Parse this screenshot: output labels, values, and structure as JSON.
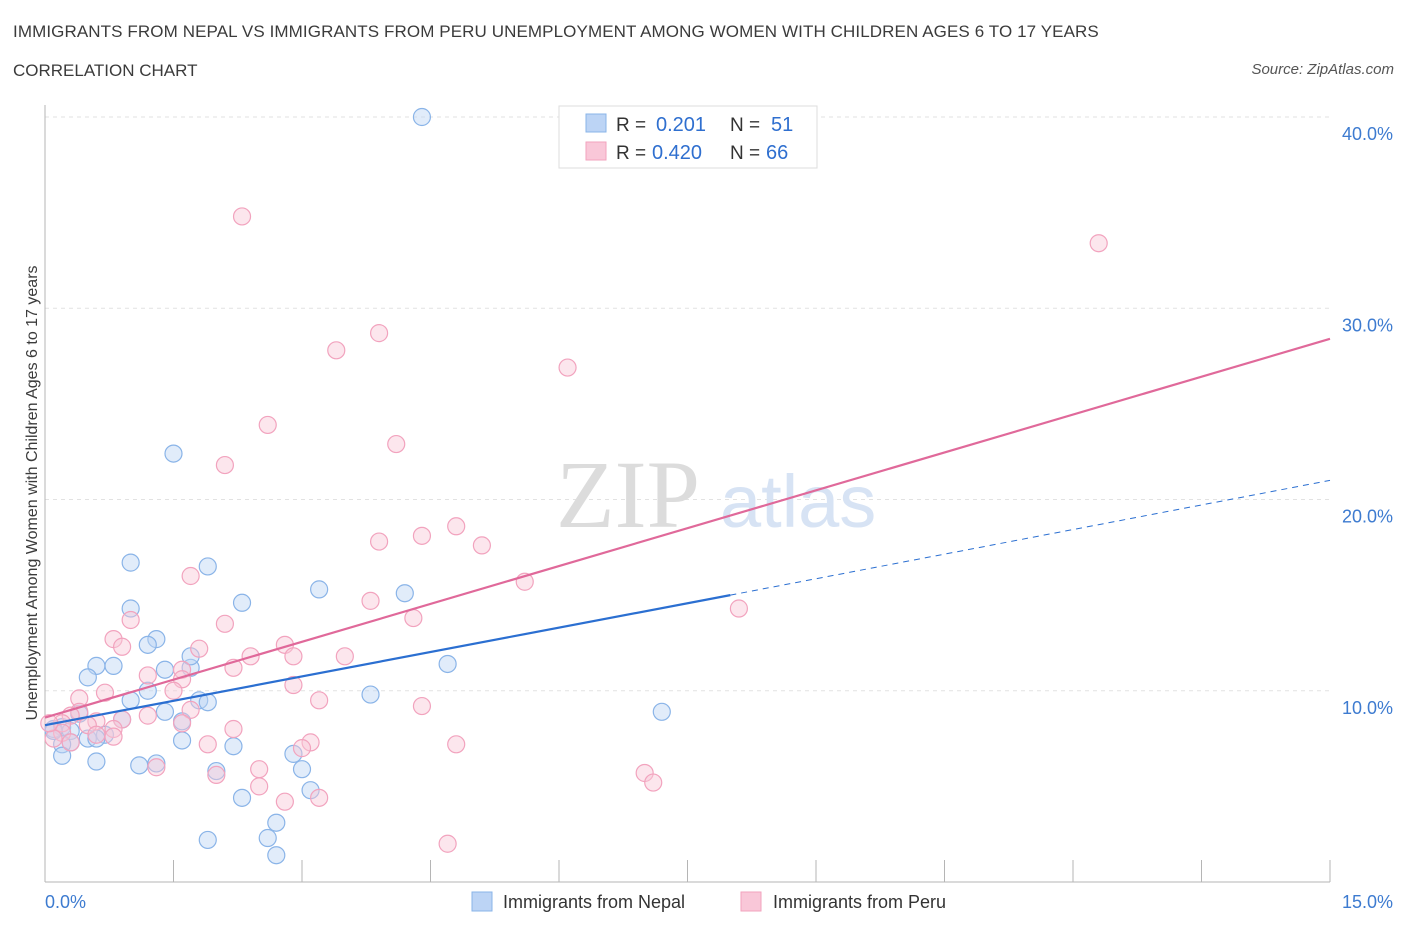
{
  "title": "IMMIGRANTS FROM NEPAL VS IMMIGRANTS FROM PERU UNEMPLOYMENT AMONG WOMEN WITH CHILDREN AGES 6 TO 17 YEARS",
  "subtitle": "CORRELATION CHART",
  "source": "Source: ZipAtlas.com",
  "watermark": {
    "zip": "ZIP",
    "atlas": "atlas"
  },
  "chart_data": {
    "type": "scatter",
    "xlabel": "",
    "ylabel": "Unemployment Among Women with Children Ages 6 to 17 years",
    "xlim": [
      0,
      15
    ],
    "ylim": [
      0,
      40
    ],
    "x_tick_labels": [
      "0.0%",
      "15.0%"
    ],
    "y_ticks": [
      10,
      20,
      30,
      40
    ],
    "y_tick_labels": [
      "10.0%",
      "20.0%",
      "30.0%",
      "40.0%"
    ],
    "grid": true,
    "legend_position": "bottom",
    "stats": [
      {
        "r_label": "R =",
        "r_value": "0.201",
        "n_label": "N =",
        "n_value": "51"
      },
      {
        "r_label": "R =",
        "r_value": "0.420",
        "n_label": "N =",
        "n_value": "66"
      }
    ],
    "series": [
      {
        "name": "Immigrants from Nepal",
        "color": "#8ab4e8",
        "line_color": "#2b6fd1",
        "trend": {
          "x0": 0.0,
          "y0": 8.2,
          "x1": 8.0,
          "y1": 15.0,
          "x_dash_end": 15.0,
          "y_dash_end": 21.0
        },
        "points": [
          [
            4.4,
            40.0
          ],
          [
            1.5,
            22.4
          ],
          [
            1.0,
            16.7
          ],
          [
            1.9,
            16.5
          ],
          [
            3.2,
            15.3
          ],
          [
            4.2,
            15.1
          ],
          [
            2.3,
            14.6
          ],
          [
            1.0,
            14.3
          ],
          [
            1.3,
            12.7
          ],
          [
            1.2,
            12.4
          ],
          [
            4.7,
            11.4
          ],
          [
            0.8,
            11.3
          ],
          [
            0.6,
            11.3
          ],
          [
            1.4,
            11.1
          ],
          [
            1.7,
            11.2
          ],
          [
            1.7,
            11.8
          ],
          [
            0.5,
            10.7
          ],
          [
            1.2,
            10.0
          ],
          [
            3.8,
            9.8
          ],
          [
            1.0,
            9.5
          ],
          [
            1.8,
            9.5
          ],
          [
            1.9,
            9.4
          ],
          [
            7.2,
            8.9
          ],
          [
            1.4,
            8.9
          ],
          [
            0.4,
            8.8
          ],
          [
            0.9,
            8.5
          ],
          [
            1.6,
            8.4
          ],
          [
            0.2,
            8.1
          ],
          [
            0.1,
            8.0
          ],
          [
            0.3,
            7.9
          ],
          [
            0.7,
            7.7
          ],
          [
            0.5,
            7.5
          ],
          [
            0.6,
            7.5
          ],
          [
            1.6,
            7.4
          ],
          [
            0.3,
            7.3
          ],
          [
            0.2,
            7.2
          ],
          [
            2.2,
            7.1
          ],
          [
            2.9,
            6.7
          ],
          [
            0.2,
            6.6
          ],
          [
            0.6,
            6.3
          ],
          [
            1.3,
            6.2
          ],
          [
            1.1,
            6.1
          ],
          [
            3.0,
            5.9
          ],
          [
            2.0,
            5.8
          ],
          [
            3.1,
            4.8
          ],
          [
            2.3,
            4.4
          ],
          [
            2.7,
            3.1
          ],
          [
            2.6,
            2.3
          ],
          [
            1.9,
            2.2
          ],
          [
            2.7,
            1.4
          ],
          [
            0.1,
            7.9
          ]
        ]
      },
      {
        "name": "Immigrants from Peru",
        "color": "#f2a3be",
        "line_color": "#e0699a",
        "trend": {
          "x0": 0.0,
          "y0": 8.6,
          "x1": 15.0,
          "y1": 28.4
        },
        "points": [
          [
            2.3,
            34.8
          ],
          [
            12.3,
            33.4
          ],
          [
            3.9,
            28.7
          ],
          [
            3.4,
            27.8
          ],
          [
            6.1,
            26.9
          ],
          [
            2.6,
            23.9
          ],
          [
            4.1,
            22.9
          ],
          [
            2.1,
            21.8
          ],
          [
            4.8,
            18.6
          ],
          [
            4.4,
            18.1
          ],
          [
            3.9,
            17.8
          ],
          [
            5.1,
            17.6
          ],
          [
            1.7,
            16.0
          ],
          [
            5.6,
            15.7
          ],
          [
            3.8,
            14.7
          ],
          [
            8.1,
            14.3
          ],
          [
            4.3,
            13.8
          ],
          [
            1.0,
            13.7
          ],
          [
            2.1,
            13.5
          ],
          [
            0.8,
            12.7
          ],
          [
            2.8,
            12.4
          ],
          [
            1.8,
            12.2
          ],
          [
            0.9,
            12.3
          ],
          [
            3.5,
            11.8
          ],
          [
            2.4,
            11.8
          ],
          [
            2.9,
            11.8
          ],
          [
            2.2,
            11.2
          ],
          [
            1.6,
            11.1
          ],
          [
            1.2,
            10.8
          ],
          [
            1.6,
            10.6
          ],
          [
            2.9,
            10.3
          ],
          [
            1.5,
            10.0
          ],
          [
            0.7,
            9.9
          ],
          [
            0.4,
            9.6
          ],
          [
            3.2,
            9.5
          ],
          [
            4.4,
            9.2
          ],
          [
            1.7,
            9.0
          ],
          [
            0.4,
            8.9
          ],
          [
            0.3,
            8.7
          ],
          [
            1.2,
            8.7
          ],
          [
            0.9,
            8.5
          ],
          [
            0.6,
            8.4
          ],
          [
            0.2,
            8.3
          ],
          [
            0.5,
            8.2
          ],
          [
            1.6,
            8.3
          ],
          [
            0.8,
            8.0
          ],
          [
            2.2,
            8.0
          ],
          [
            0.2,
            7.8
          ],
          [
            0.6,
            7.7
          ],
          [
            0.8,
            7.6
          ],
          [
            0.1,
            7.5
          ],
          [
            0.3,
            7.3
          ],
          [
            3.1,
            7.3
          ],
          [
            4.8,
            7.2
          ],
          [
            1.9,
            7.2
          ],
          [
            3.0,
            7.0
          ],
          [
            1.3,
            6.0
          ],
          [
            2.5,
            5.9
          ],
          [
            7.0,
            5.7
          ],
          [
            2.0,
            5.6
          ],
          [
            7.1,
            5.2
          ],
          [
            2.5,
            5.0
          ],
          [
            3.2,
            4.4
          ],
          [
            2.8,
            4.2
          ],
          [
            4.7,
            2.0
          ],
          [
            0.05,
            8.3
          ]
        ]
      }
    ]
  }
}
